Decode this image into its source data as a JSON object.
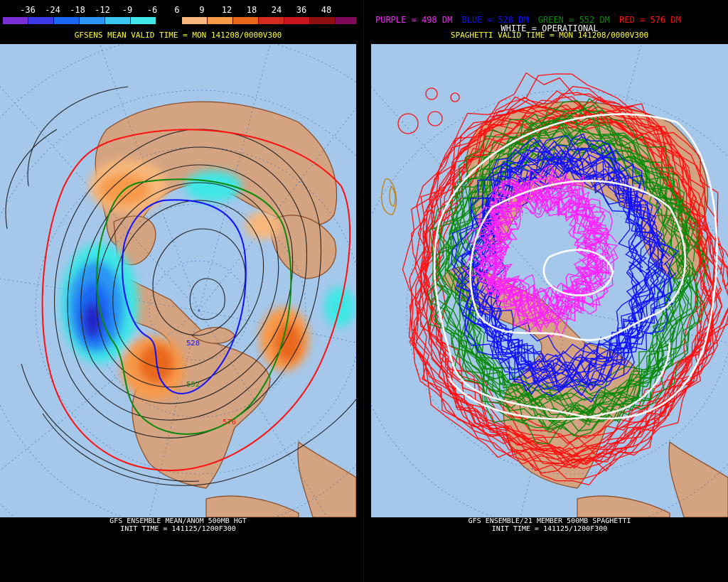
{
  "left_panel": {
    "colorbar": {
      "labels": [
        "-36",
        "-24",
        "-18",
        "-12",
        "-9",
        "-6",
        "6",
        "9",
        "12",
        "18",
        "24",
        "36",
        "48"
      ],
      "colors": [
        "#7a2fd6",
        "#3a3ae8",
        "#1a66f2",
        "#2a95f2",
        "#3ac6ee",
        "#3fe6e6",
        "#000000",
        "#f7b77a",
        "#f79a48",
        "#e8681c",
        "#d52a1f",
        "#c81620",
        "#901010",
        "#800a5a"
      ]
    },
    "subtitle": "GFSENS MEAN VALID TIME = MON 141208/0000V300",
    "caption_line1": "GFS ENSEMBLE MEAN/ANOM 500MB HGT",
    "caption_line2": "INIT TIME = 141125/1200F300",
    "contour_labels": [
      "528",
      "552",
      "576"
    ]
  },
  "right_panel": {
    "legend": {
      "purple": "PURPLE = 498 DM",
      "blue": "BLUE = 528 DM",
      "green": "GREEN = 552 DM",
      "red": "RED = 576 DM",
      "white": "WHITE = OPERATIONAL"
    },
    "subtitle": "SPAGHETTI VALID TIME = MON 141208/0000V300",
    "caption_line1": "GFS ENSEMBLE/21 MEMBER 500MB SPAGHETTI",
    "caption_line2": "INIT TIME = 141125/1200F300"
  },
  "colors": {
    "ocean": "#a4c7ea",
    "land": "#d4a382",
    "border": "#8a4a24",
    "purple": "#ff22ff",
    "blue": "#1010ff",
    "green": "#0a8a0a",
    "red": "#ff1010",
    "white": "#ffffff",
    "title": "#ffff3c"
  }
}
